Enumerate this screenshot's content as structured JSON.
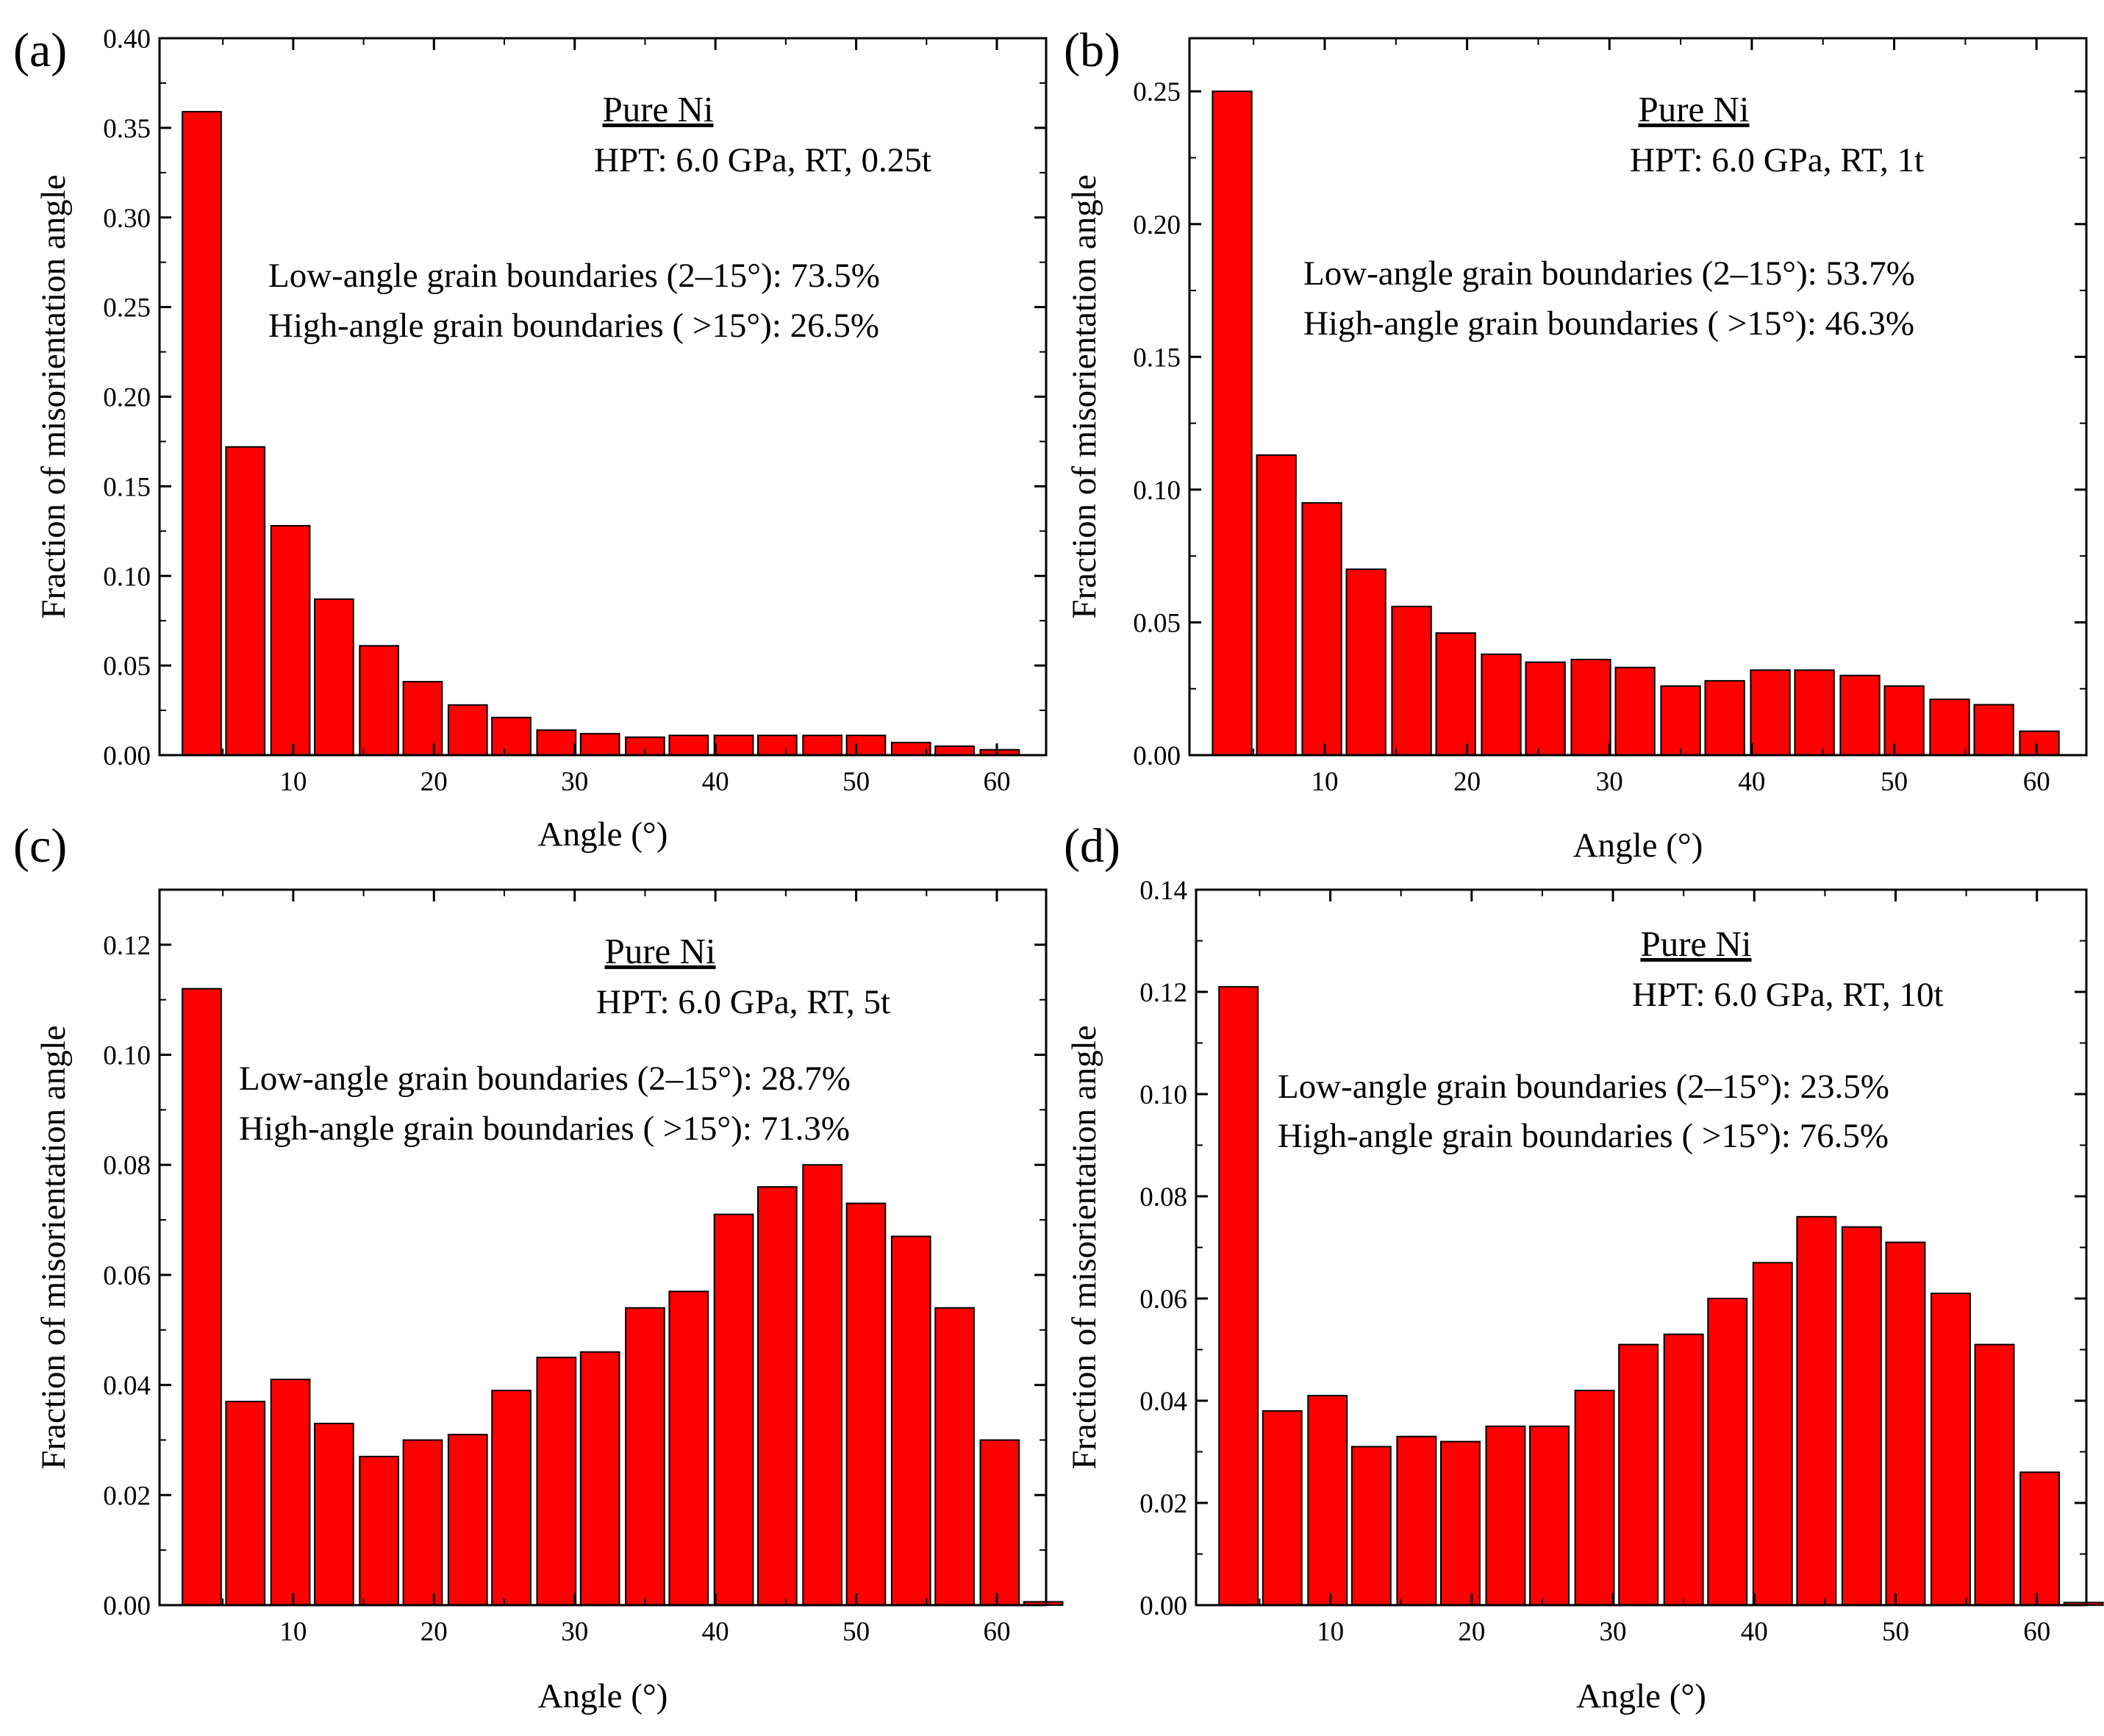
{
  "colors": {
    "bar_fill": "#ff0000",
    "bar_stroke": "#000000",
    "axis": "#000000",
    "background": "#ffffff"
  },
  "chart_data": [
    {
      "type": "bar",
      "panel_label": "(a)",
      "title": "Pure Ni",
      "subtitle": "HPT: 6.0 GPa, RT, 0.25t",
      "annotations": [
        "Low-angle grain boundaries (2–15°): 73.5%",
        "High-angle grain boundaries ( >15°): 26.5%"
      ],
      "xlabel": "Angle (°)",
      "ylabel": "Fraction of misorientation angle",
      "xlim": [
        0.5,
        63.5
      ],
      "ylim": [
        0,
        0.4
      ],
      "xticks": [
        10,
        20,
        30,
        40,
        50,
        60
      ],
      "xtick_labels": [
        "10",
        "20",
        "30",
        "40",
        "50",
        "60"
      ],
      "yticks": [
        0,
        0.05,
        0.1,
        0.15,
        0.2,
        0.25,
        0.3,
        0.35,
        0.4
      ],
      "ytick_labels": [
        "0.00",
        "0.05",
        "0.10",
        "0.15",
        "0.20",
        "0.25",
        "0.30",
        "0.35",
        "0.40"
      ],
      "bin_width": 3.2,
      "x": [
        3.5,
        6.6,
        9.8,
        12.9,
        16.1,
        19.2,
        22.4,
        25.5,
        28.7,
        31.8,
        35.0,
        38.1,
        41.3,
        44.4,
        47.6,
        50.7,
        53.9,
        57.0,
        60.2
      ],
      "values": [
        0.359,
        0.172,
        0.128,
        0.087,
        0.061,
        0.041,
        0.028,
        0.021,
        0.014,
        0.012,
        0.01,
        0.011,
        0.011,
        0.011,
        0.011,
        0.011,
        0.007,
        0.005,
        0.003
      ]
    },
    {
      "type": "bar",
      "panel_label": "(b)",
      "title": "Pure Ni",
      "subtitle": "HPT: 6.0 GPa, RT, 1t",
      "annotations": [
        "Low-angle grain boundaries (2–15°): 53.7%",
        "High-angle grain boundaries ( >15°): 46.3%"
      ],
      "xlabel": "Angle (°)",
      "ylabel": "Fraction of misorientation angle",
      "xlim": [
        0.5,
        63.5
      ],
      "ylim": [
        0,
        0.27
      ],
      "xticks": [
        10,
        20,
        30,
        40,
        50,
        60
      ],
      "xtick_labels": [
        "10",
        "20",
        "30",
        "40",
        "50",
        "60"
      ],
      "yticks": [
        0,
        0.05,
        0.1,
        0.15,
        0.2,
        0.25
      ],
      "ytick_labels": [
        "0.00",
        "0.05",
        "0.10",
        "0.15",
        "0.20",
        "0.25"
      ],
      "bin_width": 3.2,
      "x": [
        3.5,
        6.6,
        9.8,
        12.9,
        16.1,
        19.2,
        22.4,
        25.5,
        28.7,
        31.8,
        35.0,
        38.1,
        41.3,
        44.4,
        47.6,
        50.7,
        53.9,
        57.0,
        60.2
      ],
      "values": [
        0.25,
        0.113,
        0.095,
        0.07,
        0.056,
        0.046,
        0.038,
        0.035,
        0.036,
        0.033,
        0.026,
        0.028,
        0.032,
        0.032,
        0.03,
        0.026,
        0.021,
        0.019,
        0.009
      ]
    },
    {
      "type": "bar",
      "panel_label": "(c)",
      "title": "Pure Ni",
      "subtitle": "HPT: 6.0 GPa, RT, 5t",
      "annotations": [
        "Low-angle grain boundaries (2–15°): 28.7%",
        "High-angle grain boundaries ( >15°): 71.3%"
      ],
      "xlabel": "Angle (°)",
      "ylabel": "Fraction of misorientation angle",
      "xlim": [
        0.5,
        63.5
      ],
      "ylim": [
        0,
        0.13
      ],
      "xticks": [
        10,
        20,
        30,
        40,
        50,
        60
      ],
      "xtick_labels": [
        "10",
        "20",
        "30",
        "40",
        "50",
        "60"
      ],
      "yticks": [
        0,
        0.02,
        0.04,
        0.06,
        0.08,
        0.1,
        0.12
      ],
      "ytick_labels": [
        "0.00",
        "0.02",
        "0.04",
        "0.06",
        "0.08",
        "0.10",
        "0.12"
      ],
      "bin_width": 3.2,
      "x": [
        3.5,
        6.6,
        9.8,
        12.9,
        16.1,
        19.2,
        22.4,
        25.5,
        28.7,
        31.8,
        35.0,
        38.1,
        41.3,
        44.4,
        47.6,
        50.7,
        53.9,
        57.0,
        60.2,
        63.3
      ],
      "values": [
        0.112,
        0.037,
        0.041,
        0.033,
        0.027,
        0.03,
        0.031,
        0.039,
        0.045,
        0.046,
        0.054,
        0.057,
        0.071,
        0.076,
        0.08,
        0.073,
        0.067,
        0.054,
        0.03,
        0.0006
      ]
    },
    {
      "type": "bar",
      "panel_label": "(d)",
      "title": "Pure Ni",
      "subtitle": "HPT: 6.0 GPa, RT, 10t",
      "annotations": [
        "Low-angle grain boundaries (2–15°): 23.5%",
        "High-angle grain boundaries ( >15°): 76.5%"
      ],
      "xlabel": "Angle (°)",
      "ylabel": "Fraction of misorientation angle",
      "xlim": [
        0.5,
        63.5
      ],
      "ylim": [
        0,
        0.14
      ],
      "xticks": [
        10,
        20,
        30,
        40,
        50,
        60
      ],
      "xtick_labels": [
        "10",
        "20",
        "30",
        "40",
        "50",
        "60"
      ],
      "yticks": [
        0,
        0.02,
        0.04,
        0.06,
        0.08,
        0.1,
        0.12,
        0.14
      ],
      "ytick_labels": [
        "0.00",
        "0.02",
        "0.04",
        "0.06",
        "0.08",
        "0.10",
        "0.12",
        "0.14"
      ],
      "bin_width": 3.2,
      "x": [
        3.5,
        6.6,
        9.8,
        12.9,
        16.1,
        19.2,
        22.4,
        25.5,
        28.7,
        31.8,
        35.0,
        38.1,
        41.3,
        44.4,
        47.6,
        50.7,
        53.9,
        57.0,
        60.2,
        63.3
      ],
      "values": [
        0.121,
        0.038,
        0.041,
        0.031,
        0.033,
        0.032,
        0.035,
        0.035,
        0.042,
        0.051,
        0.053,
        0.06,
        0.067,
        0.076,
        0.074,
        0.071,
        0.061,
        0.051,
        0.026,
        0.0005
      ]
    }
  ]
}
